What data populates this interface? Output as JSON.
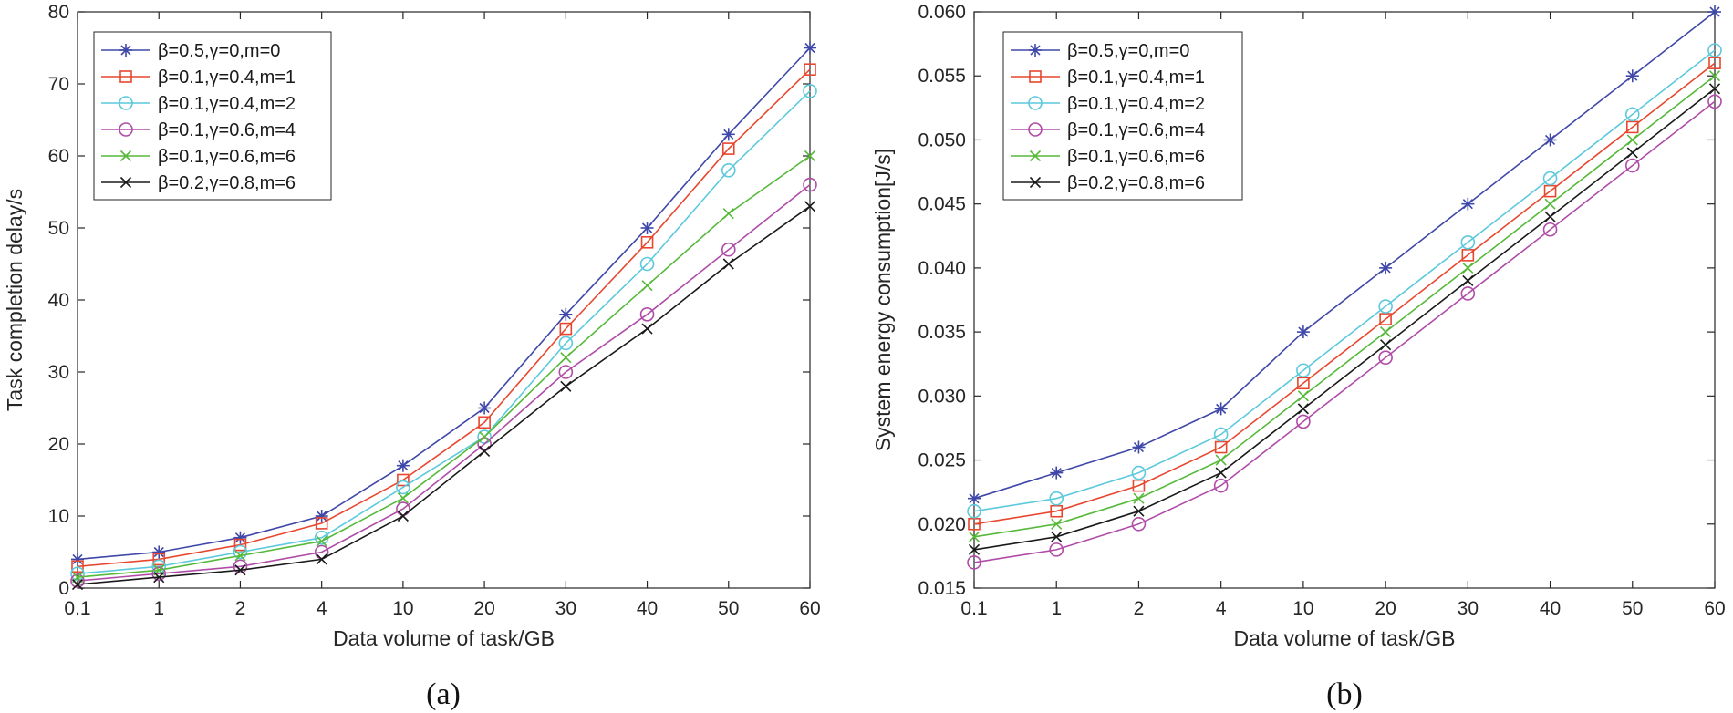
{
  "chart_data": [
    {
      "type": "line",
      "title": "",
      "caption": "(a)",
      "xlabel": "Data volume of task/GB",
      "ylabel": "Task completion delay/s",
      "categories": [
        "0.1",
        "1",
        "2",
        "4",
        "10",
        "20",
        "30",
        "40",
        "50",
        "60"
      ],
      "ylim": [
        0,
        80
      ],
      "yticks": [
        0,
        10,
        20,
        30,
        40,
        50,
        60,
        70,
        80
      ],
      "ytick_labels": [
        "0",
        "10",
        "20",
        "30",
        "40",
        "50",
        "60",
        "70",
        "80"
      ],
      "grid": false,
      "legend_position": "top-left",
      "series": [
        {
          "name": "β=0.5,γ=0,m=0",
          "color": "#3f48a8",
          "marker": "asterisk",
          "values": [
            4,
            5,
            7,
            10,
            17,
            25,
            38,
            50,
            63,
            75
          ]
        },
        {
          "name": "β=0.1,γ=0.4,m=1",
          "color": "#e8472f",
          "marker": "square",
          "values": [
            3,
            4,
            6,
            9,
            15,
            23,
            36,
            48,
            61,
            72
          ]
        },
        {
          "name": "β=0.1,γ=0.4,m=2",
          "color": "#5cc9dc",
          "marker": "circle",
          "values": [
            2,
            3,
            5,
            7,
            14,
            21,
            34,
            45,
            58,
            69
          ]
        },
        {
          "name": "β=0.1,γ=0.6,m=4",
          "color": "#b04ca8",
          "marker": "circle",
          "values": [
            1,
            2,
            3,
            5,
            11,
            20,
            30,
            38,
            47,
            56
          ]
        },
        {
          "name": "β=0.1,γ=0.6,m=6",
          "color": "#56b93a",
          "marker": "x",
          "values": [
            1.5,
            2.5,
            4.5,
            6.5,
            12.5,
            21,
            32,
            42,
            52,
            60
          ]
        },
        {
          "name": "β=0.2,γ=0.8,m=6",
          "color": "#1a1a1a",
          "marker": "x",
          "values": [
            0.5,
            1.5,
            2.5,
            4,
            10,
            19,
            28,
            36,
            45,
            53
          ]
        }
      ]
    },
    {
      "type": "line",
      "title": "",
      "caption": "(b)",
      "xlabel": "Data volume of task/GB",
      "ylabel": "System energy consumption[J/s]",
      "categories": [
        "0.1",
        "1",
        "2",
        "4",
        "10",
        "20",
        "30",
        "40",
        "50",
        "60"
      ],
      "ylim": [
        0.015,
        0.06
      ],
      "yticks": [
        0.015,
        0.02,
        0.025,
        0.03,
        0.035,
        0.04,
        0.045,
        0.05,
        0.055,
        0.06
      ],
      "ytick_labels": [
        "0.015",
        "0.020",
        "0.025",
        "0.030",
        "0.035",
        "0.040",
        "0.045",
        "0.050",
        "0.055",
        "0.060"
      ],
      "grid": false,
      "legend_position": "top-left",
      "series": [
        {
          "name": "β=0.5,γ=0,m=0",
          "color": "#3f48a8",
          "marker": "asterisk",
          "values": [
            0.022,
            0.024,
            0.026,
            0.029,
            0.035,
            0.04,
            0.045,
            0.05,
            0.055,
            0.06
          ]
        },
        {
          "name": "β=0.1,γ=0.4,m=1",
          "color": "#e8472f",
          "marker": "square",
          "values": [
            0.02,
            0.021,
            0.023,
            0.026,
            0.031,
            0.036,
            0.041,
            0.046,
            0.051,
            0.056
          ]
        },
        {
          "name": "β=0.1,γ=0.4,m=2",
          "color": "#5cc9dc",
          "marker": "circle",
          "values": [
            0.021,
            0.022,
            0.024,
            0.027,
            0.032,
            0.037,
            0.042,
            0.047,
            0.052,
            0.057
          ]
        },
        {
          "name": "β=0.1,γ=0.6,m=4",
          "color": "#b04ca8",
          "marker": "circle",
          "values": [
            0.017,
            0.018,
            0.02,
            0.023,
            0.028,
            0.033,
            0.038,
            0.043,
            0.048,
            0.053
          ]
        },
        {
          "name": "β=0.1,γ=0.6,m=6",
          "color": "#56b93a",
          "marker": "x",
          "values": [
            0.019,
            0.02,
            0.022,
            0.025,
            0.03,
            0.035,
            0.04,
            0.045,
            0.05,
            0.055
          ]
        },
        {
          "name": "β=0.2,γ=0.8,m=6",
          "color": "#1a1a1a",
          "marker": "x",
          "values": [
            0.018,
            0.019,
            0.021,
            0.024,
            0.029,
            0.034,
            0.039,
            0.044,
            0.049,
            0.054
          ]
        }
      ]
    }
  ]
}
